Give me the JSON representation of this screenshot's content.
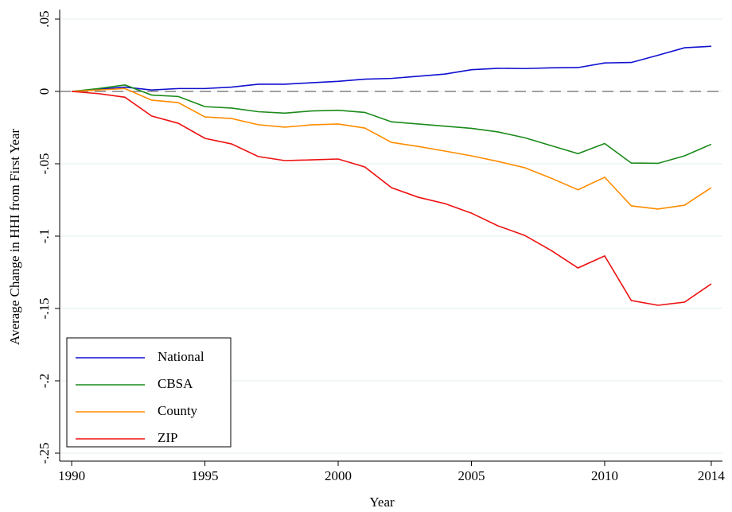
{
  "chart_data": {
    "type": "line",
    "x_label": "Year",
    "y_label": "Average Change in HHI from First Year",
    "x": [
      1990,
      1991,
      1992,
      1993,
      1994,
      1995,
      1996,
      1997,
      1998,
      1999,
      2000,
      2001,
      2002,
      2003,
      2004,
      2005,
      2006,
      2007,
      2008,
      2009,
      2010,
      2011,
      2012,
      2013,
      2014
    ],
    "series": [
      {
        "name": "National",
        "color": "#1010d0",
        "values": [
          0,
          0.0015,
          0.003,
          0.001,
          0.002,
          0.002,
          0.003,
          0.005,
          0.005,
          0.006,
          0.007,
          0.0085,
          0.009,
          0.0105,
          0.012,
          0.015,
          0.016,
          0.0158,
          0.0163,
          0.0165,
          0.0197,
          0.02,
          0.025,
          0.0302,
          0.0312
        ]
      },
      {
        "name": "CBSA",
        "color": "#1a8a1a",
        "values": [
          0,
          0.002,
          0.0045,
          -0.0025,
          -0.0035,
          -0.0105,
          -0.0115,
          -0.014,
          -0.015,
          -0.0135,
          -0.013,
          -0.0145,
          -0.021,
          -0.0225,
          -0.024,
          -0.0255,
          -0.028,
          -0.032,
          -0.0375,
          -0.043,
          -0.036,
          -0.0495,
          -0.0497,
          -0.0445,
          -0.0365
        ]
      },
      {
        "name": "County",
        "color": "#ff8c00",
        "values": [
          0,
          0.001,
          0.002,
          -0.006,
          -0.0077,
          -0.0176,
          -0.0187,
          -0.023,
          -0.0247,
          -0.0231,
          -0.0225,
          -0.0253,
          -0.0352,
          -0.038,
          -0.0412,
          -0.0445,
          -0.0484,
          -0.0527,
          -0.06,
          -0.068,
          -0.0593,
          -0.0791,
          -0.0813,
          -0.0786,
          -0.0665
        ]
      },
      {
        "name": "ZIP",
        "color": "#ee1111",
        "values": [
          0,
          -0.0015,
          -0.004,
          -0.017,
          -0.022,
          -0.0324,
          -0.0363,
          -0.045,
          -0.0478,
          -0.0473,
          -0.0467,
          -0.0522,
          -0.0665,
          -0.0731,
          -0.0775,
          -0.0841,
          -0.0929,
          -0.0995,
          -0.11,
          -0.122,
          -0.1137,
          -0.1445,
          -0.1478,
          -0.1456,
          -0.133
        ]
      }
    ],
    "xlim": [
      1989.55,
      2014.42
    ],
    "xticks": [
      1990,
      1995,
      2000,
      2005,
      2010,
      2014
    ],
    "ylim": [
      -0.2555,
      0.0566
    ],
    "yticks": [
      {
        "value": -0.25,
        "label": "-.25"
      },
      {
        "value": -0.2,
        "label": "-.2"
      },
      {
        "value": -0.15,
        "label": "-.15"
      },
      {
        "value": -0.1,
        "label": "-.1"
      },
      {
        "value": -0.05,
        "label": "-.05"
      },
      0,
      {
        "value": 0.05,
        "label": ".05"
      }
    ],
    "grid": true,
    "reference_line": 0,
    "legend": "bottom-left"
  }
}
